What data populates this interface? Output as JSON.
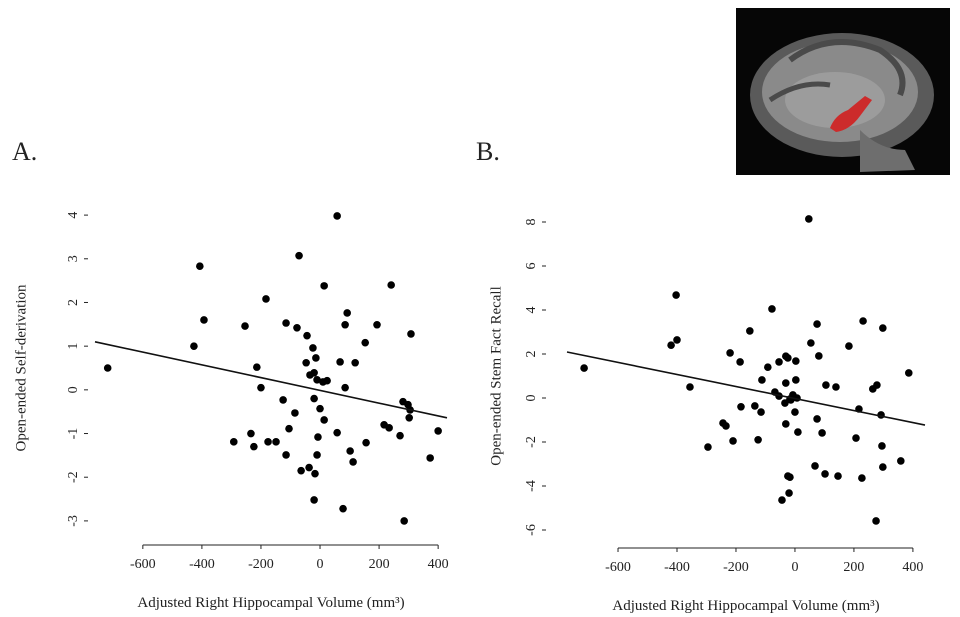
{
  "chart_data": [
    {
      "type": "scatter",
      "panel_label": "A.",
      "x_label": "Adjusted Right Hippocampal Volume (mm³)",
      "y_label": "Open-ended Self-derivation",
      "color": "#000000",
      "x": [
        -719,
        -427,
        -407,
        -393,
        -254,
        -183,
        -214,
        -200,
        -292,
        -234,
        -224,
        -176,
        -149,
        -115,
        -125,
        -105,
        -85,
        -115,
        -71,
        -78,
        -44,
        -47,
        -24,
        -34,
        -14,
        -20,
        -10,
        -20,
        0,
        -7,
        -64,
        -37,
        -17,
        -20,
        -10,
        14,
        10,
        24,
        14,
        58,
        68,
        58,
        85,
        92,
        85,
        119,
        102,
        112,
        78,
        153,
        156,
        193,
        217,
        234,
        241,
        271,
        281,
        298,
        302,
        305,
        308,
        285,
        400,
        373
      ],
      "y": [
        0.5,
        1.0,
        2.83,
        1.6,
        1.46,
        2.08,
        0.52,
        0.05,
        -1.19,
        -1.0,
        -1.3,
        -1.19,
        -1.19,
        1.53,
        -0.23,
        -0.89,
        -0.53,
        -1.49,
        3.07,
        1.42,
        1.24,
        0.62,
        0.96,
        0.34,
        0.73,
        0.39,
        0.23,
        -0.2,
        -0.43,
        -1.08,
        -1.85,
        -1.78,
        -1.92,
        -2.52,
        -1.49,
        2.38,
        0.18,
        0.21,
        -0.69,
        3.98,
        0.64,
        -0.98,
        1.49,
        1.76,
        0.05,
        0.62,
        -1.4,
        -1.65,
        -2.72,
        1.08,
        -1.21,
        1.49,
        -0.8,
        -0.87,
        2.4,
        -1.05,
        -0.27,
        -0.34,
        -0.64,
        -0.46,
        1.28,
        -3.0,
        -0.94,
        -1.56
      ],
      "fit_line": {
        "x": [
          -762,
          430
        ],
        "y": [
          1.1,
          -0.64
        ]
      },
      "xlim": [
        -762,
        430
      ],
      "ylim": [
        -3.3,
        4.3
      ],
      "xticks": [
        -600,
        -400,
        -200,
        0,
        200,
        400
      ],
      "yticks": [
        -3,
        -2,
        -1,
        0,
        1,
        2,
        3,
        4
      ]
    },
    {
      "type": "scatter",
      "panel_label": "B.",
      "x_label": "Adjusted Right Hippocampal Volume (mm³)",
      "y_label": "Open-ended Stem Fact Recall",
      "color": "#000000",
      "x": [
        -715,
        -420,
        -403,
        -400,
        -356,
        -295,
        -244,
        -234,
        -210,
        -220,
        -186,
        -183,
        -153,
        -136,
        -115,
        -125,
        -112,
        -92,
        -78,
        -68,
        -54,
        -54,
        -31,
        -24,
        -31,
        -34,
        -31,
        -44,
        -17,
        -24,
        -20,
        -17,
        -14,
        -7,
        0,
        3,
        3,
        10,
        7,
        47,
        54,
        75,
        81,
        68,
        75,
        92,
        105,
        102,
        139,
        146,
        183,
        207,
        217,
        231,
        227,
        264,
        278,
        275,
        292,
        295,
        298,
        298,
        359,
        386
      ],
      "y": [
        1.36,
        2.4,
        4.68,
        2.64,
        0.5,
        -2.23,
        -1.14,
        -1.27,
        -1.95,
        2.05,
        1.64,
        -0.4,
        3.05,
        -0.36,
        -0.64,
        -1.9,
        0.82,
        1.4,
        4.05,
        0.27,
        0.09,
        1.64,
        1.9,
        1.82,
        0.68,
        -0.23,
        -1.18,
        -4.64,
        -3.6,
        -3.55,
        -4.32,
        -0.05,
        -0.09,
        0.14,
        -0.64,
        0.82,
        1.68,
        -1.55,
        0.0,
        8.14,
        2.5,
        3.36,
        1.91,
        -3.09,
        -0.95,
        -1.59,
        0.59,
        -3.45,
        0.5,
        -3.55,
        2.36,
        -1.82,
        -0.5,
        3.5,
        -3.64,
        0.41,
        0.59,
        -5.59,
        -0.77,
        -2.18,
        3.18,
        -3.14,
        -2.86,
        1.14
      ],
      "fit_line": {
        "x": [
          -773,
          441
        ],
        "y": [
          2.09,
          -1.23
        ]
      },
      "xlim": [
        -773,
        441
      ],
      "ylim": [
        -6.5,
        8.5
      ],
      "xticks": [
        -600,
        -400,
        -200,
        0,
        200,
        400
      ],
      "yticks": [
        -6,
        -4,
        -2,
        0,
        2,
        4,
        6,
        8
      ]
    }
  ]
}
